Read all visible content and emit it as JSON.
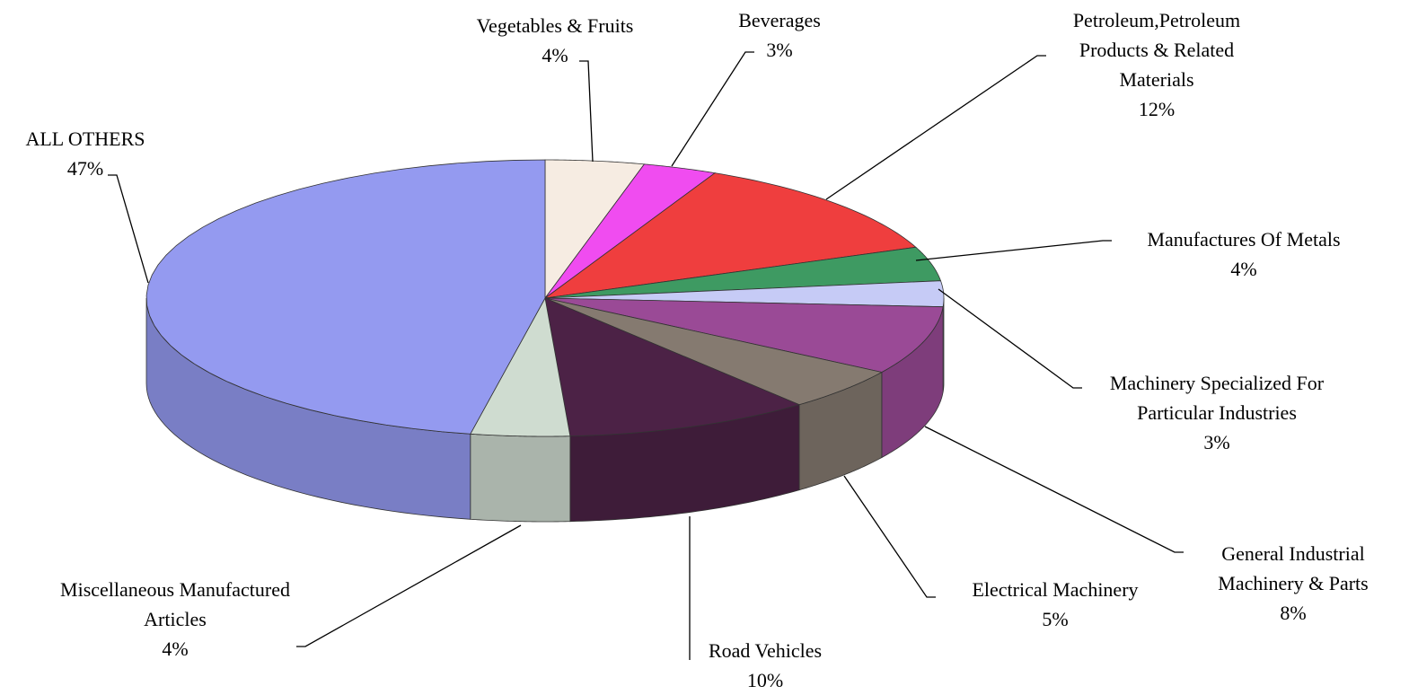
{
  "chart_data": {
    "type": "pie3d",
    "categories": [
      "Vegetables & Fruits",
      "Beverages",
      "Petroleum,Petroleum Products & Related Materials",
      "Manufactures Of Metals",
      "Machinery Specialized For Particular Industries",
      "General Industrial Machinery & Parts",
      "Electrical Machinery",
      "Road Vehicles",
      "Miscellaneous Manufactured Articles",
      "ALL OTHERS"
    ],
    "values": [
      4,
      3,
      12,
      4,
      3,
      8,
      5,
      10,
      4,
      47
    ],
    "value_labels": [
      "4%",
      "3%",
      "12%",
      "4%",
      "3%",
      "8%",
      "5%",
      "10%",
      "4%",
      "47%"
    ],
    "colors": [
      "#f6ece2",
      "#f04cf0",
      "#ef3e3e",
      "#3e9a62",
      "#c6cbf6",
      "#9a4a96",
      "#857a70",
      "#4c2246",
      "#cfdcd0",
      "#949af0"
    ]
  }
}
